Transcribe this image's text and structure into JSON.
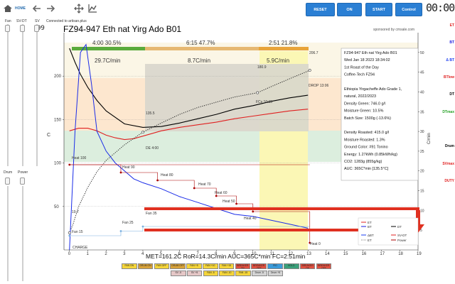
{
  "toolbar": {
    "home_label": "HOME",
    "reset_label": "RESET",
    "on_label": "ON",
    "start_label": "START",
    "control_label": "Control",
    "timer": "00:00"
  },
  "connection": {
    "text": "Connected to artisan.plus"
  },
  "left_panel": {
    "fan_label": "Fan",
    "svdt_label": "SV-DT",
    "sv_label": "SV",
    "sv_value": "99",
    "drum_label": "Drum",
    "power_label": "Power"
  },
  "right_panel": {
    "et": "ET",
    "bt": "BT",
    "delta_bt": "Δ BT",
    "btlow": "BTlow",
    "dt": "DT",
    "dtmax": "DTmax",
    "drum": "Drum",
    "svmax": "SVmax",
    "duty": "DUTY",
    "colors": {
      "et": "#e02020",
      "bt": "#1a1ae0",
      "delta_bt": "#1a3cf0",
      "btlow": "#e02020",
      "dt": "#000000",
      "dtmax": "#22a022",
      "drum": "#000000",
      "svmax": "#e02020",
      "duty": "#e02020"
    }
  },
  "chart": {
    "title": "FZ94-947 Eth nat Yirg Ado B01",
    "sponsor": "sponsored by cmsale.com",
    "ylabel_left": "C",
    "ylabel_right": "C/min",
    "phases": [
      {
        "label": "4:00  30.5%",
        "rate": "29.7C/min",
        "color": "#5aab3c"
      },
      {
        "label": "6:15  47.7%",
        "rate": "8.7C/min",
        "color": "#e6b872"
      },
      {
        "label": "2:51  21.8%",
        "rate": "5.9C/min",
        "color": "#e8a43a"
      }
    ],
    "annotations": {
      "charge": "CHARGE",
      "temp_19_7": "19.7",
      "temp_135_5": "135.5",
      "de": "DE 4:00",
      "temp_180_9": "180.9",
      "fcs": "FCs 10:15",
      "temp_206_7": "206.7",
      "drop": "DROP 13:06",
      "heat100": "Heat 100",
      "heat90": "Heat 90",
      "heat80": "Heat 80",
      "heat70": "Heat 70",
      "heat60": "Heat 60",
      "heat50": "Heat 50",
      "heat40": "Heat 40",
      "heat0": "Heat 0",
      "fan15": "Fan 15",
      "fan25": "Fan 25",
      "fan35": "Fan 35"
    },
    "summary": "MET=161.2C  RoR=14.3C/min  AUC=365C*min  FC=2:51min",
    "legend": {
      "et": "ET",
      "bt": "BT",
      "dt": "DT",
      "delta_bt": "ΔBT",
      "sv_dt": "SV-DT",
      "et_dotted": "ET",
      "power": "Power"
    },
    "info_box": [
      "FZ94-947 Eth nat Yirg Ado B01",
      "Wed Jan 18 2023 18:34:02",
      "1st Roast of the Day",
      "Coffee-Tech FZ94",
      "",
      "Ethiopia Yirgacheffe Ado Grade 1,",
      " natural, 2022/2023",
      "Density Green: 746.0 g/l",
      "Moisture Green: 10.5%",
      "Batch Size: 1500g (-13.6%)",
      "",
      "Density Roasted: 415.0 g/l",
      "Moisture Roasted: 1.3%",
      "Ground Color: #91 Tonino",
      "Energy: 1.27kWh (0.85kWh/kg)",
      "CO2: 1283g (855g/kg)",
      "AUC: 365C*min [135.5°C]"
    ],
    "x_ticks": [
      "0",
      "1",
      "2",
      "3",
      "4",
      "5",
      "6",
      "7",
      "8",
      "9",
      "10",
      "11",
      "12",
      "13",
      "14",
      "15",
      "16",
      "17",
      "18",
      "19"
    ],
    "y_ticks_left": [
      "50",
      "100",
      "150",
      "200"
    ],
    "y_ticks_right": [
      "5",
      "10",
      "15",
      "20",
      "25",
      "30",
      "35",
      "40",
      "45",
      "50"
    ]
  },
  "chart_data": {
    "type": "line",
    "title": "FZ94-947 Eth nat Yirg Ado B01",
    "xlabel": "",
    "ylabel": "C",
    "y2label": "C/min",
    "xlim": [
      -0.3,
      19
    ],
    "ylim": [
      0,
      250
    ],
    "y2lim": [
      0,
      55
    ],
    "x_unit": "min",
    "series": [
      {
        "name": "ET",
        "axis": "left",
        "x": [
          0,
          0.5,
          1,
          1.5,
          2,
          2.5,
          3,
          3.5,
          4,
          5,
          6,
          7,
          8,
          9,
          10,
          11,
          12,
          13
        ],
        "y": [
          137,
          140,
          140,
          137,
          132,
          129,
          127,
          128,
          131,
          137,
          141,
          144,
          147,
          151,
          154,
          157,
          160,
          162
        ]
      },
      {
        "name": "DT",
        "axis": "left",
        "x": [
          0,
          0.3,
          0.6,
          1,
          1.5,
          2,
          3,
          4,
          5,
          6,
          7,
          8,
          9,
          10,
          11,
          12,
          13
        ],
        "y": [
          232,
          216,
          202,
          187,
          172,
          160,
          145,
          141,
          142,
          146,
          151,
          156,
          162,
          166,
          171,
          175,
          178
        ]
      },
      {
        "name": "BT",
        "axis": "left",
        "x": [
          0,
          0.2,
          0.5,
          1,
          1.5,
          2,
          3,
          4,
          5,
          6,
          7,
          8,
          9,
          10.25,
          11,
          12,
          13.1
        ],
        "y": [
          19.7,
          30,
          50,
          72,
          90,
          103,
          121,
          135.5,
          146,
          156,
          164,
          170,
          176,
          180.9,
          188,
          197,
          206.7
        ]
      },
      {
        "name": "ΔBT",
        "axis": "right",
        "x": [
          0,
          0.3,
          0.6,
          0.9,
          1.2,
          1.5,
          2,
          2.5,
          3,
          3.5,
          4,
          5,
          6,
          7,
          8,
          9,
          10,
          11,
          12,
          13
        ],
        "y": [
          0,
          30,
          50,
          52,
          42,
          30,
          25,
          22,
          20,
          18,
          17,
          15.5,
          13.5,
          12,
          10.5,
          9,
          8.5,
          7.5,
          6.5,
          5.5
        ]
      }
    ],
    "events": [
      {
        "label": "CHARGE",
        "x": 0,
        "y": 19.7
      },
      {
        "label": "DE 4:00",
        "x": 4,
        "y": 135.5
      },
      {
        "label": "FCs 10:15",
        "x": 10.25,
        "y": 180.9
      },
      {
        "label": "DROP 13:06",
        "x": 13.1,
        "y": 206.7
      }
    ],
    "heat_steps": [
      {
        "x": 0,
        "value": 100
      },
      {
        "x": 2.8,
        "value": 90
      },
      {
        "x": 4.8,
        "value": 80
      },
      {
        "x": 6.8,
        "value": 70
      },
      {
        "x": 8.0,
        "value": 60
      },
      {
        "x": 9.1,
        "value": 50
      },
      {
        "x": 10.0,
        "value": 40
      },
      {
        "x": 13.1,
        "value": 0
      }
    ],
    "fan_steps": [
      {
        "x": 0,
        "value": 15
      },
      {
        "x": 2.8,
        "value": 25
      },
      {
        "x": 4.0,
        "value": 35
      }
    ]
  },
  "bottom_bar": [
    {
      "label": "FAN ON",
      "color": "#f5d53a"
    },
    {
      "label": "DRUM ON",
      "color": "#d9a33a"
    },
    {
      "label": "FAN OFF",
      "color": "#f5d53a"
    },
    {
      "label": "DRUM OFF",
      "color": "#d9a33a"
    },
    {
      "label": "FAN +5",
      "color": "#f5d53a"
    },
    {
      "label": "FAN +10",
      "color": "#f5d53a"
    },
    {
      "label": "FAN +15",
      "color": "#f5d53a"
    },
    {
      "label": "BREAKER ON",
      "color": "#e05040"
    },
    {
      "label": "BREAKER OFF",
      "color": "#e05040"
    },
    {
      "label": "PID",
      "color": "#3a9ad9"
    },
    {
      "label": "HOLD",
      "color": "#3aa07a"
    },
    {
      "label": "BREAKER ON",
      "color": "#e05040"
    },
    {
      "label": "BREAKER OFF",
      "color": "#e05040"
    }
  ],
  "bottom_bar_row2": [
    {
      "label": "SV -5",
      "color": "#e5c7c7"
    },
    {
      "label": "SV +5",
      "color": "#e5c7c7"
    },
    {
      "label": "FAN -5",
      "color": "#f5d53a"
    },
    {
      "label": "FAN -10",
      "color": "#f5d53a"
    },
    {
      "label": "FAN -15",
      "color": "#f5d53a"
    },
    {
      "label": "Drum -5",
      "color": "#d4d4d4"
    },
    {
      "label": "Drum +5",
      "color": "#d4d4d4"
    }
  ]
}
